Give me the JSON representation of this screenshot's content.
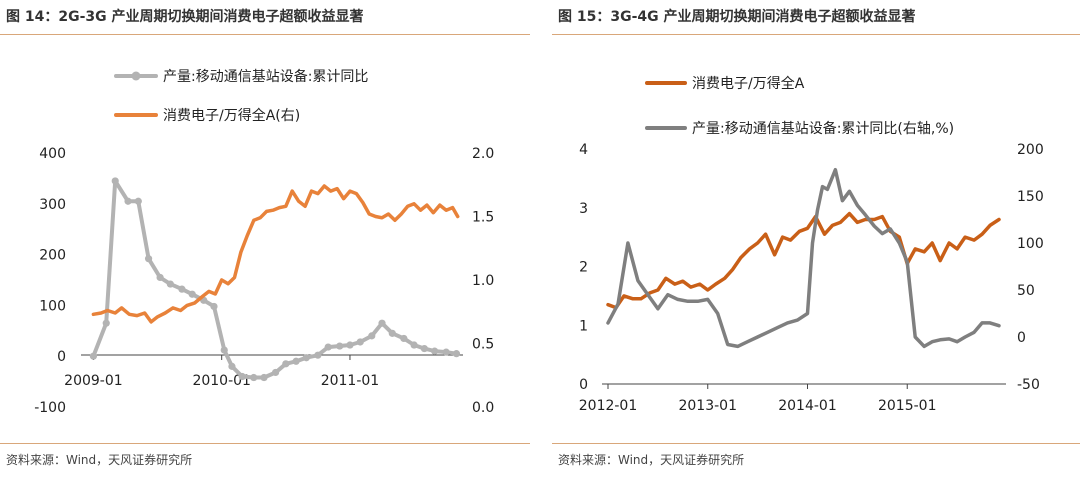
{
  "colors": {
    "orange": "#E8823A",
    "gray_light": "#B3B3B3",
    "orange_dark": "#C95F17",
    "gray_dark": "#7F7F7F"
  },
  "chart_data": [
    {
      "type": "line",
      "title": "图 14：2G-3G 产业周期切换期间消费电子超额收益显著",
      "source": "资料来源：Wind，天风证券研究所",
      "x_ticks": [
        "2009-01",
        "2010-01",
        "2011-01"
      ],
      "x_tick_pos": [
        0,
        1,
        2
      ],
      "xlim": [
        -0.05,
        2.85
      ],
      "y_left": {
        "min": -100,
        "max": 400,
        "ticks": [
          "-100",
          "0",
          "100",
          "200",
          "300",
          "400"
        ],
        "tick_values": [
          -100,
          0,
          100,
          200,
          300,
          400
        ]
      },
      "y_right": {
        "min": 0.0,
        "max": 2.0,
        "ticks": [
          "0.0",
          "0.5",
          "1.0",
          "1.5",
          "2.0"
        ],
        "tick_values": [
          0.0,
          0.5,
          1.0,
          1.5,
          2.0
        ]
      },
      "legend_position": "top",
      "series": [
        {
          "name": "产量:移动通信基站设备:累计同比",
          "axis": "left",
          "color_key": "gray_light",
          "markers": true,
          "x": [
            0.0,
            0.1,
            0.17,
            0.27,
            0.35,
            0.43,
            0.52,
            0.6,
            0.69,
            0.77,
            0.86,
            0.94,
            1.02,
            1.08,
            1.16,
            1.25,
            1.33,
            1.42,
            1.5,
            1.58,
            1.66,
            1.75,
            1.83,
            1.92,
            2.0,
            2.08,
            2.17,
            2.25,
            2.33,
            2.42,
            2.5,
            2.58,
            2.66,
            2.75,
            2.83
          ],
          "values": [
            0,
            65,
            345,
            305,
            305,
            192,
            155,
            142,
            132,
            122,
            110,
            98,
            12,
            -20,
            -40,
            -42,
            -42,
            -32,
            -15,
            -10,
            -3,
            2,
            18,
            20,
            22,
            28,
            40,
            65,
            45,
            35,
            22,
            15,
            10,
            8,
            5
          ]
        },
        {
          "name": "消费电子/万得全A(右)",
          "axis": "right",
          "color_key": "orange",
          "markers": false,
          "x": [
            0.0,
            0.06,
            0.11,
            0.17,
            0.22,
            0.28,
            0.34,
            0.4,
            0.45,
            0.5,
            0.56,
            0.62,
            0.68,
            0.73,
            0.79,
            0.85,
            0.9,
            0.95,
            1.0,
            1.05,
            1.1,
            1.15,
            1.2,
            1.25,
            1.3,
            1.35,
            1.4,
            1.45,
            1.5,
            1.55,
            1.6,
            1.65,
            1.7,
            1.75,
            1.8,
            1.85,
            1.9,
            1.95,
            2.0,
            2.05,
            2.1,
            2.15,
            2.2,
            2.25,
            2.3,
            2.35,
            2.4,
            2.45,
            2.5,
            2.55,
            2.6,
            2.65,
            2.7,
            2.75,
            2.8,
            2.84
          ],
          "values": [
            0.73,
            0.74,
            0.76,
            0.74,
            0.78,
            0.73,
            0.72,
            0.74,
            0.67,
            0.71,
            0.74,
            0.78,
            0.76,
            0.8,
            0.82,
            0.87,
            0.91,
            0.89,
            1.0,
            0.97,
            1.02,
            1.22,
            1.35,
            1.47,
            1.49,
            1.54,
            1.55,
            1.57,
            1.58,
            1.7,
            1.62,
            1.58,
            1.7,
            1.68,
            1.74,
            1.7,
            1.72,
            1.64,
            1.7,
            1.68,
            1.61,
            1.52,
            1.5,
            1.49,
            1.52,
            1.47,
            1.52,
            1.58,
            1.6,
            1.55,
            1.59,
            1.53,
            1.59,
            1.55,
            1.57,
            1.5
          ]
        }
      ]
    },
    {
      "type": "line",
      "title": "图 15：3G-4G 产业周期切换期间消费电子超额收益显著",
      "source": "资料来源：Wind，天风证券研究所",
      "x_ticks": [
        "2012-01",
        "2013-01",
        "2014-01",
        "2015-01"
      ],
      "x_tick_pos": [
        0,
        1,
        2,
        3
      ],
      "xlim": [
        0.0,
        3.95
      ],
      "y_left": {
        "min": 0,
        "max": 4,
        "ticks": [
          "0",
          "1",
          "2",
          "3",
          "4"
        ],
        "tick_values": [
          0,
          1,
          2,
          3,
          4
        ]
      },
      "y_right": {
        "min": -50,
        "max": 200,
        "ticks": [
          "-50",
          "0",
          "50",
          "100",
          "150",
          "200"
        ],
        "tick_values": [
          -50,
          0,
          50,
          100,
          150,
          200
        ]
      },
      "legend_position": "top",
      "series": [
        {
          "name": "消费电子/万得全A",
          "axis": "left",
          "color_key": "orange_dark",
          "markers": false,
          "x": [
            0.0,
            0.08,
            0.16,
            0.25,
            0.33,
            0.42,
            0.5,
            0.58,
            0.67,
            0.75,
            0.83,
            0.92,
            1.0,
            1.08,
            1.17,
            1.25,
            1.33,
            1.42,
            1.5,
            1.58,
            1.67,
            1.75,
            1.83,
            1.92,
            2.0,
            2.08,
            2.17,
            2.25,
            2.33,
            2.42,
            2.5,
            2.58,
            2.67,
            2.75,
            2.83,
            2.92,
            3.0,
            3.08,
            3.17,
            3.25,
            3.33,
            3.42,
            3.5,
            3.58,
            3.67,
            3.75,
            3.83,
            3.92
          ],
          "values": [
            1.35,
            1.3,
            1.5,
            1.45,
            1.45,
            1.55,
            1.6,
            1.8,
            1.7,
            1.75,
            1.65,
            1.7,
            1.6,
            1.7,
            1.8,
            1.95,
            2.15,
            2.3,
            2.4,
            2.55,
            2.2,
            2.5,
            2.45,
            2.6,
            2.65,
            2.85,
            2.55,
            2.7,
            2.75,
            2.9,
            2.75,
            2.8,
            2.8,
            2.85,
            2.6,
            2.5,
            2.05,
            2.3,
            2.25,
            2.4,
            2.1,
            2.4,
            2.3,
            2.5,
            2.45,
            2.55,
            2.7,
            2.8
          ]
        },
        {
          "name": "产量:移动通信基站设备:累计同比(右轴,%)",
          "axis": "right",
          "color_key": "gray_dark",
          "markers": false,
          "x": [
            0.0,
            0.1,
            0.2,
            0.3,
            0.4,
            0.5,
            0.6,
            0.7,
            0.8,
            0.9,
            1.0,
            1.1,
            1.2,
            1.3,
            1.4,
            1.5,
            1.6,
            1.7,
            1.8,
            1.9,
            2.0,
            2.05,
            2.1,
            2.15,
            2.2,
            2.28,
            2.35,
            2.42,
            2.5,
            2.58,
            2.67,
            2.75,
            2.83,
            2.92,
            3.0,
            3.08,
            3.17,
            3.25,
            3.33,
            3.42,
            3.5,
            3.58,
            3.67,
            3.75,
            3.83,
            3.92
          ],
          "values": [
            15,
            35,
            100,
            60,
            45,
            30,
            45,
            40,
            38,
            38,
            40,
            25,
            -8,
            -10,
            -5,
            0,
            5,
            10,
            15,
            18,
            25,
            100,
            135,
            160,
            157,
            178,
            145,
            155,
            140,
            130,
            118,
            110,
            115,
            100,
            80,
            0,
            -10,
            -5,
            -3,
            -2,
            -5,
            0,
            5,
            15,
            15,
            12
          ]
        }
      ]
    }
  ]
}
